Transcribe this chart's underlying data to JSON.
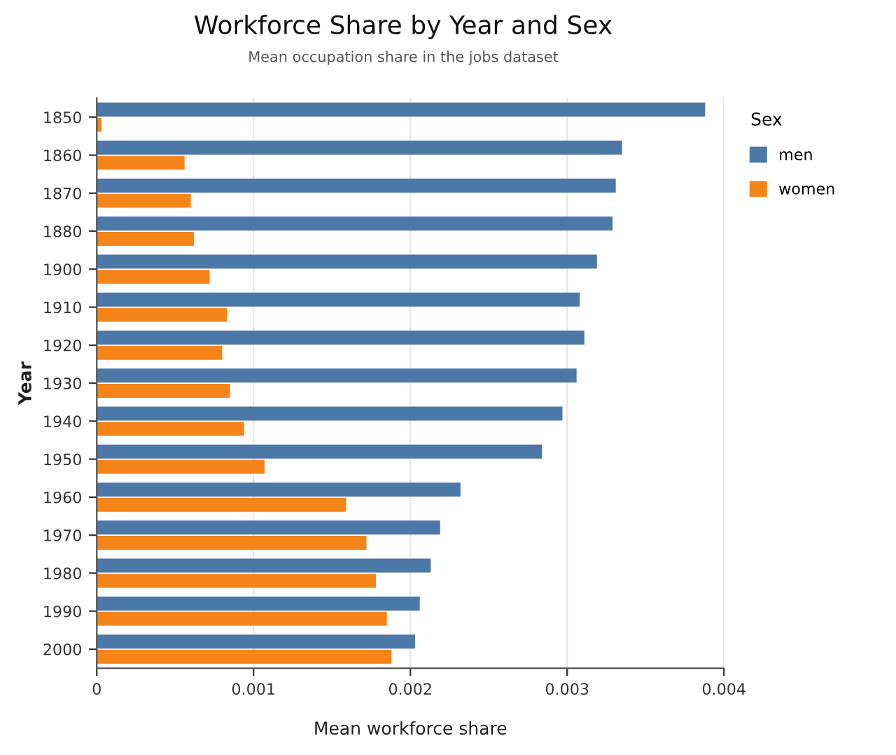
{
  "chart_data": {
    "type": "bar",
    "orientation": "horizontal",
    "title": "Workforce Share by Year and Sex",
    "subtitle": "Mean occupation share in the jobs dataset",
    "xlabel": "Mean workforce share",
    "ylabel": "Year",
    "legend_title": "Sex",
    "legend": "top right",
    "grid": "x",
    "categories": [
      "1850",
      "1860",
      "1870",
      "1880",
      "1900",
      "1910",
      "1920",
      "1930",
      "1940",
      "1950",
      "1960",
      "1970",
      "1980",
      "1990",
      "2000"
    ],
    "series": [
      {
        "name": "men",
        "color": "#4c78a8",
        "values": [
          0.00388,
          0.00335,
          0.00331,
          0.00329,
          0.00319,
          0.00308,
          0.00311,
          0.00306,
          0.00297,
          0.00284,
          0.00232,
          0.00219,
          0.00213,
          0.00206,
          0.00203
        ]
      },
      {
        "name": "women",
        "color": "#f58518",
        "values": [
          3e-05,
          0.00056,
          0.0006,
          0.00062,
          0.00072,
          0.00083,
          0.0008,
          0.00085,
          0.00094,
          0.00107,
          0.00159,
          0.00172,
          0.00178,
          0.00185,
          0.00188
        ]
      }
    ],
    "xlim": [
      0,
      0.004
    ],
    "xticks": [
      0,
      0.001,
      0.002,
      0.003,
      0.004
    ]
  }
}
